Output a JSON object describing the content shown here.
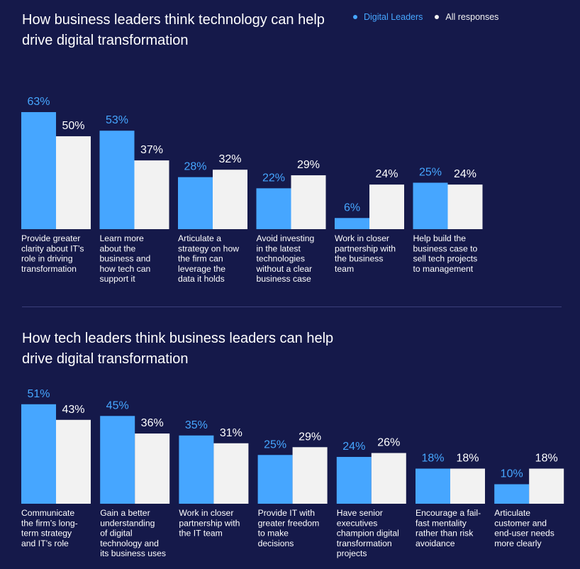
{
  "legend": {
    "digital_leaders": "Digital Leaders",
    "all_responses": "All responses"
  },
  "colors": {
    "background": "#15194a",
    "digital_leaders": "#46a6ff",
    "all_responses": "#f2f2f2",
    "divider": "#3a3f7a",
    "text": "#ffffff"
  },
  "chart_data": [
    {
      "type": "bar",
      "title": "How business leaders think technology can help drive digital transformation",
      "legend_position": "top-right",
      "grid": false,
      "ylim": [
        0,
        70
      ],
      "categories": [
        "Provide greater clarity about IT’s role in driving transformation",
        "Learn more about the business and how tech can support it",
        "Articulate a strategy on how the firm can leverage the data it holds",
        "Avoid investing in the latest technologies without a clear business case",
        "Work in closer partnership with the business team",
        "Help build the business case to sell tech projects to management"
      ],
      "category_lines": [
        [
          "Provide greater",
          "clarity about IT’s",
          "role in driving",
          "transformation"
        ],
        [
          "Learn more",
          "about the",
          "business and",
          "how tech can",
          "support it"
        ],
        [
          "Articulate a",
          "strategy on how",
          "the firm can",
          "leverage the",
          "data it holds"
        ],
        [
          "Avoid investing",
          "in the latest",
          "technologies",
          "without a clear",
          "business case"
        ],
        [
          "Work in closer",
          "partnership with",
          "the business",
          "team"
        ],
        [
          "Help build the",
          "business case to",
          "sell tech projects",
          "to management"
        ]
      ],
      "series": [
        {
          "name": "Digital Leaders",
          "values": [
            63,
            53,
            28,
            22,
            6,
            25
          ],
          "labels": [
            "63%",
            "53%",
            "28%",
            "22%",
            "6%",
            "25%"
          ]
        },
        {
          "name": "All responses",
          "values": [
            50,
            37,
            32,
            29,
            24,
            24
          ],
          "labels": [
            "50%",
            "37%",
            "32%",
            "29%",
            "24%",
            "24%"
          ]
        }
      ]
    },
    {
      "type": "bar",
      "title": "How tech leaders think business leaders can help drive digital transformation",
      "grid": false,
      "ylim": [
        0,
        58
      ],
      "categories": [
        "Communicate the firm’s long-term strategy and IT’s role",
        "Gain a better understanding of digital technology and its business uses",
        "Work in closer partnership with the IT team",
        "Provide IT with greater freedom to make decisions",
        "Have senior executives champion digital transformation projects",
        "Encourage a fail-fast mentality rather than risk avoidance",
        "Articulate customer and end-user needs more clearly"
      ],
      "category_lines": [
        [
          "Communicate",
          "the firm’s long-",
          "term strategy",
          "and IT’s role"
        ],
        [
          "Gain a better",
          "understanding",
          "of digital",
          "technology and",
          "its business uses"
        ],
        [
          "Work in closer",
          "partnership with",
          "the IT team"
        ],
        [
          "Provide IT with",
          "greater freedom",
          "to make",
          "decisions"
        ],
        [
          "Have senior",
          "executives",
          "champion digital",
          "transformation",
          "projects"
        ],
        [
          "Encourage a fail-",
          "fast mentality",
          "rather than risk",
          "avoidance"
        ],
        [
          "Articulate",
          "customer and",
          "end-user needs",
          "more clearly"
        ]
      ],
      "series": [
        {
          "name": "Digital Leaders",
          "values": [
            51,
            45,
            35,
            25,
            24,
            18,
            10
          ],
          "labels": [
            "51%",
            "45%",
            "35%",
            "25%",
            "24%",
            "18%",
            "10%"
          ]
        },
        {
          "name": "All responses",
          "values": [
            43,
            36,
            31,
            29,
            26,
            18,
            18
          ],
          "labels": [
            "43%",
            "36%",
            "31%",
            "29%",
            "26%",
            "18%",
            "18%"
          ]
        }
      ]
    }
  ]
}
